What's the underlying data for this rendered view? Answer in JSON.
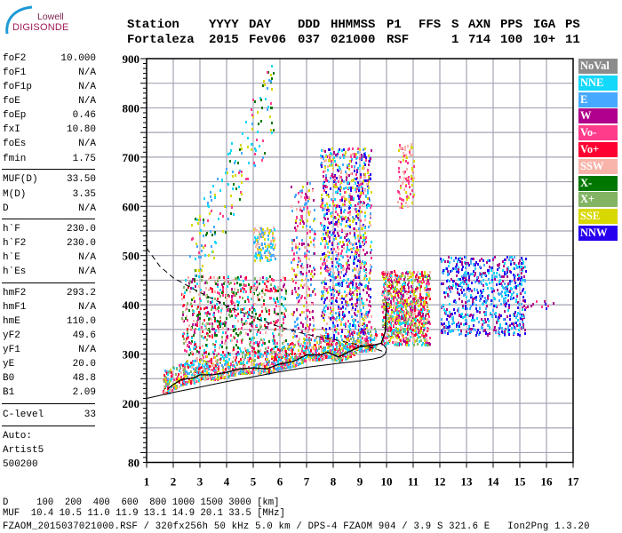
{
  "logo": {
    "line1": "Lowell",
    "line2": "DIGISONDE"
  },
  "header": {
    "labels": [
      "Station",
      "YYYY",
      "DAY",
      "DDD",
      "HHMMSS",
      "P1",
      "FFS",
      "S",
      "AXN",
      "PPS",
      "IGA",
      "PS"
    ],
    "values": [
      "Fortaleza",
      "2015",
      "Fev06",
      "037",
      "021000",
      "RSF",
      "",
      "1",
      "714",
      "100",
      "10+",
      "11"
    ]
  },
  "params": [
    {
      "k": "foF2",
      "v": "10.000"
    },
    {
      "k": "foF1",
      "v": "N/A"
    },
    {
      "k": "foF1p",
      "v": "N/A"
    },
    {
      "k": "foE",
      "v": "N/A"
    },
    {
      "k": "foEp",
      "v": "0.46"
    },
    {
      "k": "fxI",
      "v": "10.80"
    },
    {
      "k": "foEs",
      "v": "N/A"
    },
    {
      "k": "fmin",
      "v": "1.75"
    },
    {
      "k": "MUF(D)",
      "v": "33.50"
    },
    {
      "k": "M(D)",
      "v": "3.35"
    },
    {
      "k": "D",
      "v": "N/A"
    },
    {
      "k": "h`F",
      "v": "230.0"
    },
    {
      "k": "h`F2",
      "v": "230.0"
    },
    {
      "k": "h`E",
      "v": "N/A"
    },
    {
      "k": "h`Es",
      "v": "N/A"
    },
    {
      "k": "hmF2",
      "v": "293.2"
    },
    {
      "k": "hmF1",
      "v": "N/A"
    },
    {
      "k": "hmE",
      "v": "110.0"
    },
    {
      "k": "yF2",
      "v": "49.6"
    },
    {
      "k": "yF1",
      "v": "N/A"
    },
    {
      "k": "yE",
      "v": "20.0"
    },
    {
      "k": "B0",
      "v": "48.8"
    },
    {
      "k": "B1",
      "v": "2.09"
    },
    {
      "k": "C-level",
      "v": "33"
    }
  ],
  "auto": [
    "Auto:",
    "Artist5",
    "500200"
  ],
  "legend": [
    {
      "label": "NoVal",
      "color": "#8c8c8c"
    },
    {
      "label": "NNE",
      "color": "#14d8fa"
    },
    {
      "label": "E",
      "color": "#46a8ff"
    },
    {
      "label": "W",
      "color": "#b0008c"
    },
    {
      "label": "Vo-",
      "color": "#ff3c8c"
    },
    {
      "label": "Vo+",
      "color": "#ff0032"
    },
    {
      "label": "SSW",
      "color": "#f8b4aa"
    },
    {
      "label": "X-",
      "color": "#007800"
    },
    {
      "label": "X+",
      "color": "#82b464"
    },
    {
      "label": "SSE",
      "color": "#d8d800"
    },
    {
      "label": "NNW",
      "color": "#2800f0"
    }
  ],
  "bottom": {
    "d_row": "D     100  200  400  600  800 1000 1500 3000 [km]",
    "muf_row": "MUF  10.4 10.5 11.0 11.9 13.1 14.9 20.1 33.5 [MHz]",
    "footer": "FZAOM_2015037021000.RSF / 320fx256h 50 kHz 5.0 km / DPS-4 FZAOM 904 / 3.9 S 321.6 E   Ion2Png 1.3.20"
  },
  "chart_data": {
    "type": "scatter",
    "title": "",
    "xlabel": "",
    "ylabel": "",
    "xlim": [
      1,
      17
    ],
    "ylim": [
      80,
      900
    ],
    "x_ticks": [
      "1",
      "2",
      "3",
      "4",
      "5",
      "6",
      "7",
      "8",
      "9",
      "10",
      "11",
      "12",
      "13",
      "14",
      "15",
      "16",
      "17"
    ],
    "y_ticks": [
      {
        "v": 900,
        "label": "900"
      },
      {
        "v": 800,
        "label": "800"
      },
      {
        "v": 700,
        "label": "700"
      },
      {
        "v": 600,
        "label": "600"
      },
      {
        "v": 500,
        "label": "500"
      },
      {
        "v": 400,
        "label": "400"
      },
      {
        "v": 300,
        "label": "300"
      },
      {
        "v": 200,
        "label": "200"
      },
      {
        "v": 80,
        "label": "80"
      }
    ],
    "grid": true,
    "legend_placement": "right",
    "echo_regions": [
      {
        "f": [
          1.6,
          9.6
        ],
        "h_above_trace": [
          -8,
          40
        ],
        "n": 1400,
        "colors": [
          "Vo+",
          "E",
          "SSE",
          "X+",
          "Vo-",
          "SSW",
          "NNE"
        ]
      },
      {
        "f": [
          2.3,
          6.2
        ],
        "h": [
          300,
          460
        ],
        "n": 700,
        "colors": [
          "W",
          "Vo+",
          "Vo-",
          "X+",
          "NNE",
          "X-",
          "SSW"
        ]
      },
      {
        "f": [
          2.6,
          5.8
        ],
        "h": [
          480,
          830
        ],
        "n": 180,
        "diag": true,
        "colors": [
          "SSE",
          "E",
          "NNE",
          "X-",
          "Vo-"
        ]
      },
      {
        "f": [
          5.0,
          5.8
        ],
        "h": [
          490,
          560
        ],
        "n": 120,
        "colors": [
          "E",
          "SSE",
          "NNE",
          "SSW"
        ]
      },
      {
        "f": [
          6.4,
          7.3
        ],
        "h": [
          330,
          650
        ],
        "n": 260,
        "colors": [
          "W",
          "SSE",
          "Vo-",
          "SSW",
          "E"
        ]
      },
      {
        "f": [
          7.5,
          9.4
        ],
        "h": [
          330,
          720
        ],
        "n": 1100,
        "colors": [
          "W",
          "NNE",
          "NNW",
          "SSE",
          "Vo-",
          "E",
          "SSW"
        ]
      },
      {
        "f": [
          9.8,
          11.6
        ],
        "h": [
          320,
          470
        ],
        "n": 900,
        "colors": [
          "Vo+",
          "SSW",
          "SSE",
          "Vo-",
          "NNE",
          "W",
          "X+"
        ]
      },
      {
        "f": [
          10.4,
          11.0
        ],
        "h": [
          600,
          730
        ],
        "n": 90,
        "colors": [
          "SSE",
          "Vo-",
          "SSW"
        ]
      },
      {
        "f": [
          12.0,
          15.2
        ],
        "h": [
          340,
          500
        ],
        "n": 700,
        "colors": [
          "NNW",
          "E",
          "NNE",
          "W"
        ]
      },
      {
        "f": [
          15.2,
          16.6
        ],
        "h": [
          395,
          410
        ],
        "n": 12,
        "colors": [
          "NNW",
          "W",
          "Vo-"
        ]
      }
    ],
    "trace": {
      "f": [
        1.8,
        2.0,
        2.3,
        2.8,
        3.0,
        3.5,
        4.0,
        4.5,
        5.0,
        5.5,
        6.0,
        6.5,
        7.0,
        7.5,
        7.8,
        8.2,
        8.6,
        9.0,
        9.5,
        9.8,
        9.95,
        10.0
      ],
      "h": [
        230,
        238,
        248,
        252,
        258,
        258,
        263,
        270,
        272,
        270,
        280,
        285,
        298,
        298,
        304,
        294,
        305,
        315,
        318,
        322,
        345,
        405
      ]
    },
    "profile": {
      "f": [
        1.0,
        2,
        3,
        4,
        5,
        6,
        7,
        8,
        9,
        9.5,
        9.8,
        9.95,
        10.0,
        9.9,
        9.8
      ],
      "h": [
        210,
        222,
        233,
        244,
        254,
        264,
        273,
        280,
        286,
        290,
        294,
        300,
        310,
        318,
        322
      ]
    },
    "dashed": {
      "f": [
        1.0,
        1.5,
        2.0,
        2.5,
        3.0,
        4.0,
        5.0,
        6.0,
        7.0,
        8.0,
        9.0,
        9.5,
        10.0
      ],
      "h": [
        515,
        478,
        455,
        440,
        425,
        398,
        375,
        355,
        340,
        330,
        318,
        312,
        303
      ]
    }
  }
}
